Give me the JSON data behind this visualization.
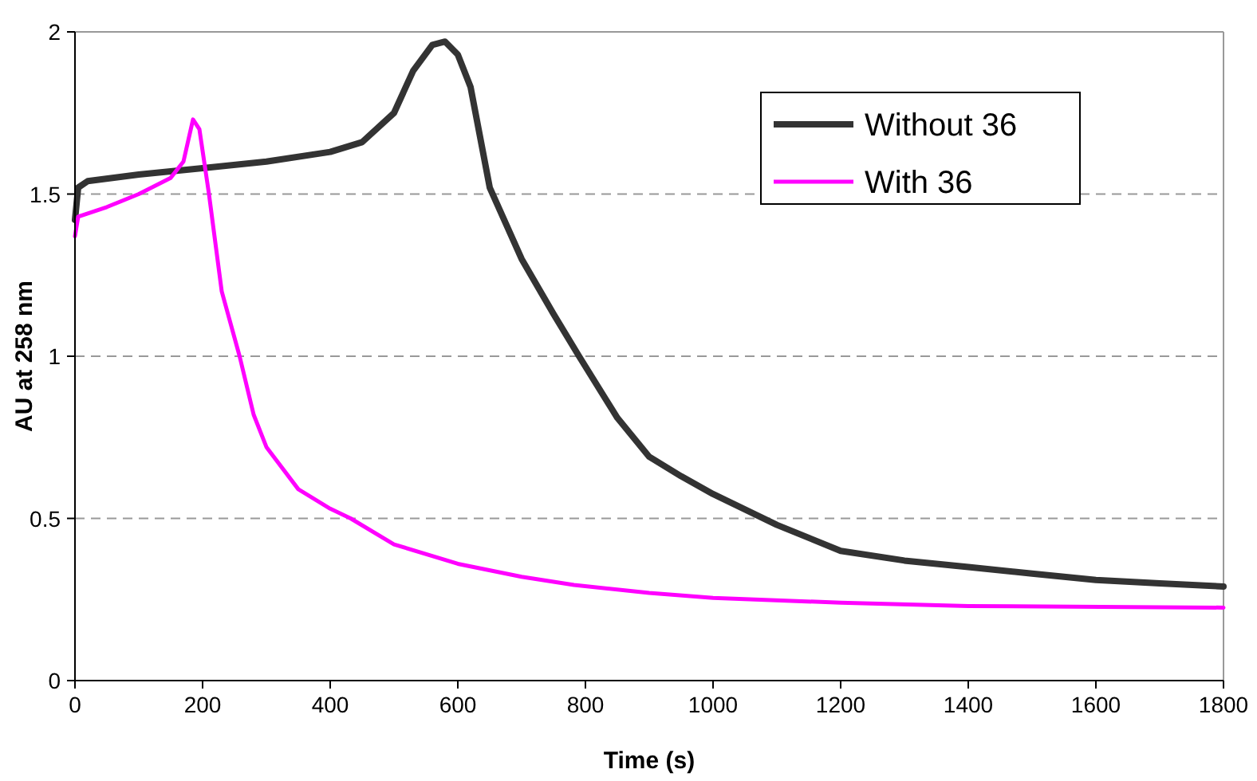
{
  "chart_data": {
    "type": "line",
    "xlabel": "Time (s)",
    "ylabel": "AU at 258 nm",
    "xlim": [
      0,
      1800
    ],
    "xticks": [
      0,
      200,
      400,
      600,
      800,
      1000,
      1200,
      1400,
      1600,
      1800
    ],
    "ylim": [
      0,
      2
    ],
    "yticks": [
      0,
      0.5,
      1,
      1.5,
      2
    ],
    "grid": "y",
    "legend": "top right",
    "series": [
      {
        "name": "Without 36",
        "color": "#333333",
        "x": [
          0,
          5,
          20,
          100,
          200,
          300,
          400,
          450,
          500,
          530,
          560,
          580,
          600,
          620,
          650,
          700,
          750,
          790,
          850,
          900,
          950,
          1000,
          1100,
          1200,
          1300,
          1400,
          1500,
          1600,
          1700,
          1800
        ],
        "values": [
          1.42,
          1.52,
          1.54,
          1.56,
          1.58,
          1.6,
          1.63,
          1.66,
          1.75,
          1.88,
          1.96,
          1.97,
          1.93,
          1.83,
          1.52,
          1.3,
          1.13,
          1.0,
          0.81,
          0.69,
          0.63,
          0.575,
          0.48,
          0.4,
          0.37,
          0.35,
          0.33,
          0.31,
          0.3,
          0.29
        ]
      },
      {
        "name": "With 36",
        "color": "#ff00ff",
        "x": [
          0,
          5,
          50,
          100,
          150,
          170,
          185,
          195,
          210,
          230,
          258,
          280,
          300,
          350,
          400,
          432,
          500,
          600,
          700,
          782,
          900,
          1000,
          1200,
          1400,
          1800
        ],
        "values": [
          1.37,
          1.43,
          1.46,
          1.5,
          1.55,
          1.6,
          1.73,
          1.7,
          1.5,
          1.2,
          1.0,
          0.82,
          0.72,
          0.59,
          0.53,
          0.5,
          0.42,
          0.36,
          0.32,
          0.295,
          0.27,
          0.255,
          0.24,
          0.23,
          0.225
        ]
      }
    ]
  }
}
